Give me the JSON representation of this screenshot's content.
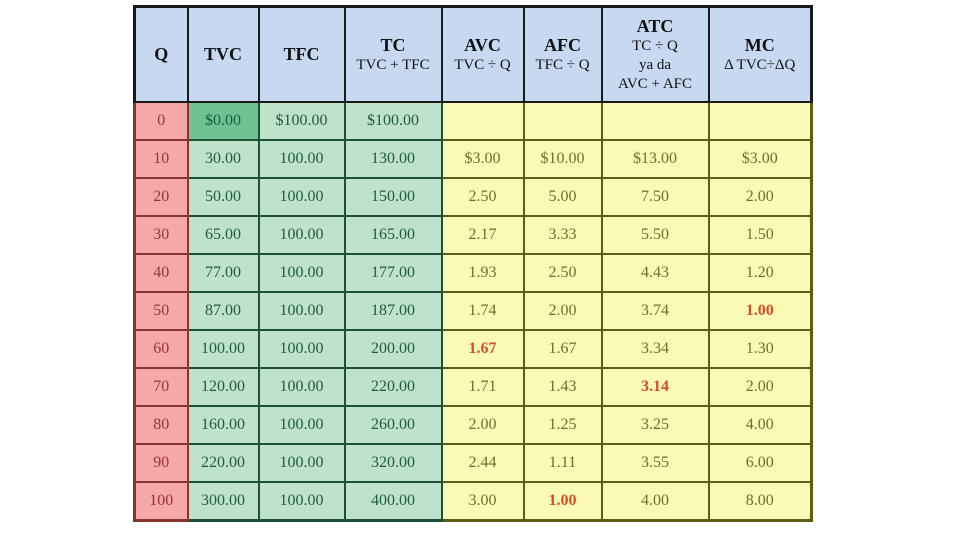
{
  "colors": {
    "header_bg": "#C6D9F0",
    "q_column_bg": "#F6A8A8",
    "cost_columns_bg": "#BFE3CA",
    "avg_columns_bg": "#FAF9B5",
    "zero_tvc_cell_bg": "#6FC291",
    "highlight_text": "#D34E2A"
  },
  "chart_data": {
    "type": "table",
    "columns": [
      {
        "label": "Q",
        "sub": []
      },
      {
        "label": "TVC",
        "sub": []
      },
      {
        "label": "TFC",
        "sub": []
      },
      {
        "label": "TC",
        "sub": [
          "TVC + TFC"
        ]
      },
      {
        "label": "AVC",
        "sub": [
          "TVC ÷ Q"
        ]
      },
      {
        "label": "AFC",
        "sub": [
          "TFC ÷ Q"
        ]
      },
      {
        "label": "ATC",
        "sub": [
          "TC ÷ Q",
          "ya da",
          "AVC + AFC"
        ]
      },
      {
        "label": "MC",
        "sub": [
          "Δ TVC÷ΔQ"
        ]
      }
    ],
    "rows": [
      {
        "cells": [
          "0",
          "$0.00",
          "$100.00",
          "$100.00",
          "",
          "",
          "",
          ""
        ]
      },
      {
        "cells": [
          "10",
          "30.00",
          "100.00",
          "130.00",
          "$3.00",
          "$10.00",
          "$13.00",
          "$3.00"
        ]
      },
      {
        "cells": [
          "20",
          "50.00",
          "100.00",
          "150.00",
          "2.50",
          "5.00",
          "7.50",
          "2.00"
        ]
      },
      {
        "cells": [
          "30",
          "65.00",
          "100.00",
          "165.00",
          "2.17",
          "3.33",
          "5.50",
          "1.50"
        ]
      },
      {
        "cells": [
          "40",
          "77.00",
          "100.00",
          "177.00",
          "1.93",
          "2.50",
          "4.43",
          "1.20"
        ]
      },
      {
        "cells": [
          "50",
          "87.00",
          "100.00",
          "187.00",
          "1.74",
          "2.00",
          "3.74",
          "1.00"
        ]
      },
      {
        "cells": [
          "60",
          "100.00",
          "100.00",
          "200.00",
          "1.67",
          "1.67",
          "3.34",
          "1.30"
        ]
      },
      {
        "cells": [
          "70",
          "120.00",
          "100.00",
          "220.00",
          "1.71",
          "1.43",
          "3.14",
          "2.00"
        ]
      },
      {
        "cells": [
          "80",
          "160.00",
          "100.00",
          "260.00",
          "2.00",
          "1.25",
          "3.25",
          "4.00"
        ]
      },
      {
        "cells": [
          "90",
          "220.00",
          "100.00",
          "320.00",
          "2.44",
          "1.11",
          "3.55",
          "6.00"
        ]
      },
      {
        "cells": [
          "100",
          "300.00",
          "100.00",
          "400.00",
          "3.00",
          "1.00",
          "4.00",
          "8.00"
        ]
      }
    ],
    "red_highlight_cells": [
      [
        5,
        7
      ],
      [
        6,
        4
      ],
      [
        7,
        6
      ],
      [
        10,
        5
      ]
    ],
    "dark_green_cell": [
      0,
      1
    ]
  }
}
